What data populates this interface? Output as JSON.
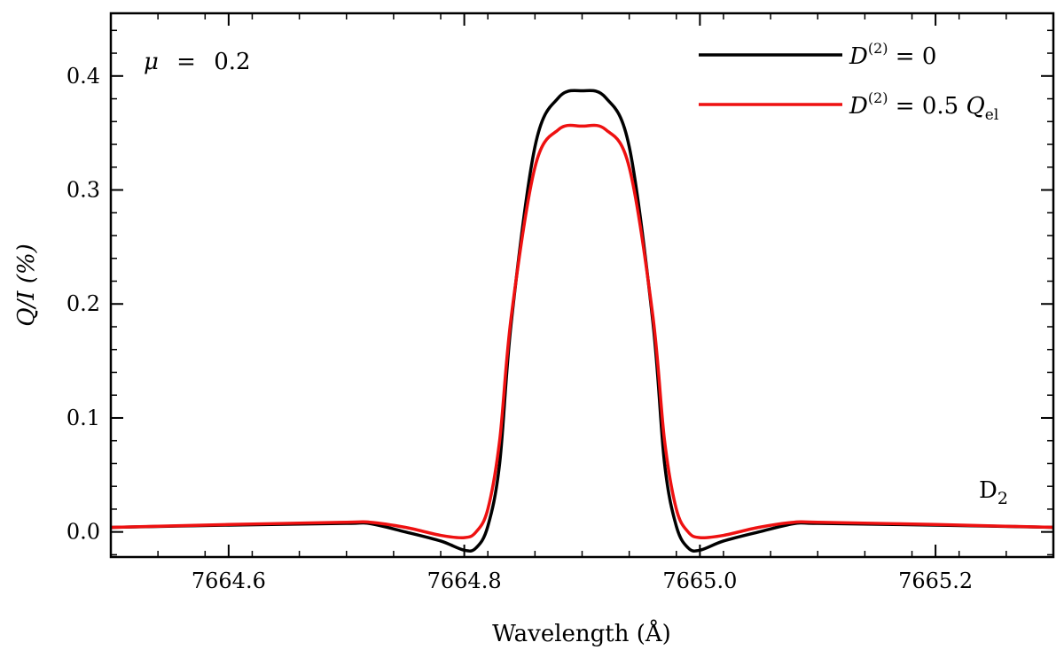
{
  "chart_data": {
    "type": "line",
    "title": "",
    "xlabel": "Wavelength (Å)",
    "ylabel": "Q/I (%)",
    "xlim": [
      7664.5,
      7665.3
    ],
    "ylim": [
      -0.022,
      0.455
    ],
    "x_ticks": [
      7664.6,
      7664.8,
      7665.0,
      7665.2
    ],
    "x_tick_labels": [
      "7664.6",
      "7664.8",
      "7665.0",
      "7665.2"
    ],
    "y_ticks": [
      0.0,
      0.1,
      0.2,
      0.3,
      0.4
    ],
    "y_tick_labels": [
      "0.0",
      "0.1",
      "0.2",
      "0.3",
      "0.4"
    ],
    "legend_position": "top-right",
    "annotations": {
      "mu_symbol": "μ",
      "mu_equals": "=",
      "mu_value": "0.2",
      "line_label_main": "D",
      "line_label_sub": "2"
    },
    "series": [
      {
        "name": "D(2) = 0",
        "legend": {
          "base": "D",
          "sup": "(2)",
          "rest": " = 0",
          "subscript": ""
        },
        "color": "#000000",
        "x": [
          7664.5,
          7664.6,
          7664.7,
          7664.72,
          7664.75,
          7664.78,
          7664.8,
          7664.81,
          7664.82,
          7664.83,
          7664.84,
          7664.86,
          7664.88,
          7664.9,
          7664.92,
          7664.94,
          7664.96,
          7664.97,
          7664.98,
          7664.99,
          7665.0,
          7665.02,
          7665.05,
          7665.08,
          7665.1,
          7665.2,
          7665.3
        ],
        "y": [
          0.004,
          0.006,
          0.0075,
          0.0073,
          0.0,
          -0.008,
          -0.016,
          -0.014,
          0.005,
          0.06,
          0.185,
          0.338,
          0.381,
          0.387,
          0.381,
          0.338,
          0.185,
          0.06,
          0.005,
          -0.014,
          -0.016,
          -0.008,
          0.0,
          0.0073,
          0.0075,
          0.006,
          0.004
        ]
      },
      {
        "name": "D(2) = 0.5 Qel",
        "legend": {
          "base": "D",
          "sup": "(2)",
          "rest": " = 0.5 ",
          "subscript": "el",
          "q": "Q"
        },
        "color": "#ee1111",
        "x": [
          7664.5,
          7664.6,
          7664.7,
          7664.72,
          7664.75,
          7664.78,
          7664.8,
          7664.81,
          7664.82,
          7664.83,
          7664.84,
          7664.86,
          7664.88,
          7664.9,
          7664.92,
          7664.94,
          7664.96,
          7664.97,
          7664.98,
          7664.99,
          7665.0,
          7665.02,
          7665.05,
          7665.08,
          7665.1,
          7665.2,
          7665.3
        ],
        "y": [
          0.004,
          0.0065,
          0.0085,
          0.0085,
          0.004,
          -0.003,
          -0.005,
          0.0,
          0.02,
          0.08,
          0.19,
          0.32,
          0.353,
          0.356,
          0.353,
          0.32,
          0.19,
          0.08,
          0.02,
          0.0,
          -0.005,
          -0.003,
          0.004,
          0.0085,
          0.0085,
          0.0065,
          0.004
        ]
      }
    ]
  }
}
